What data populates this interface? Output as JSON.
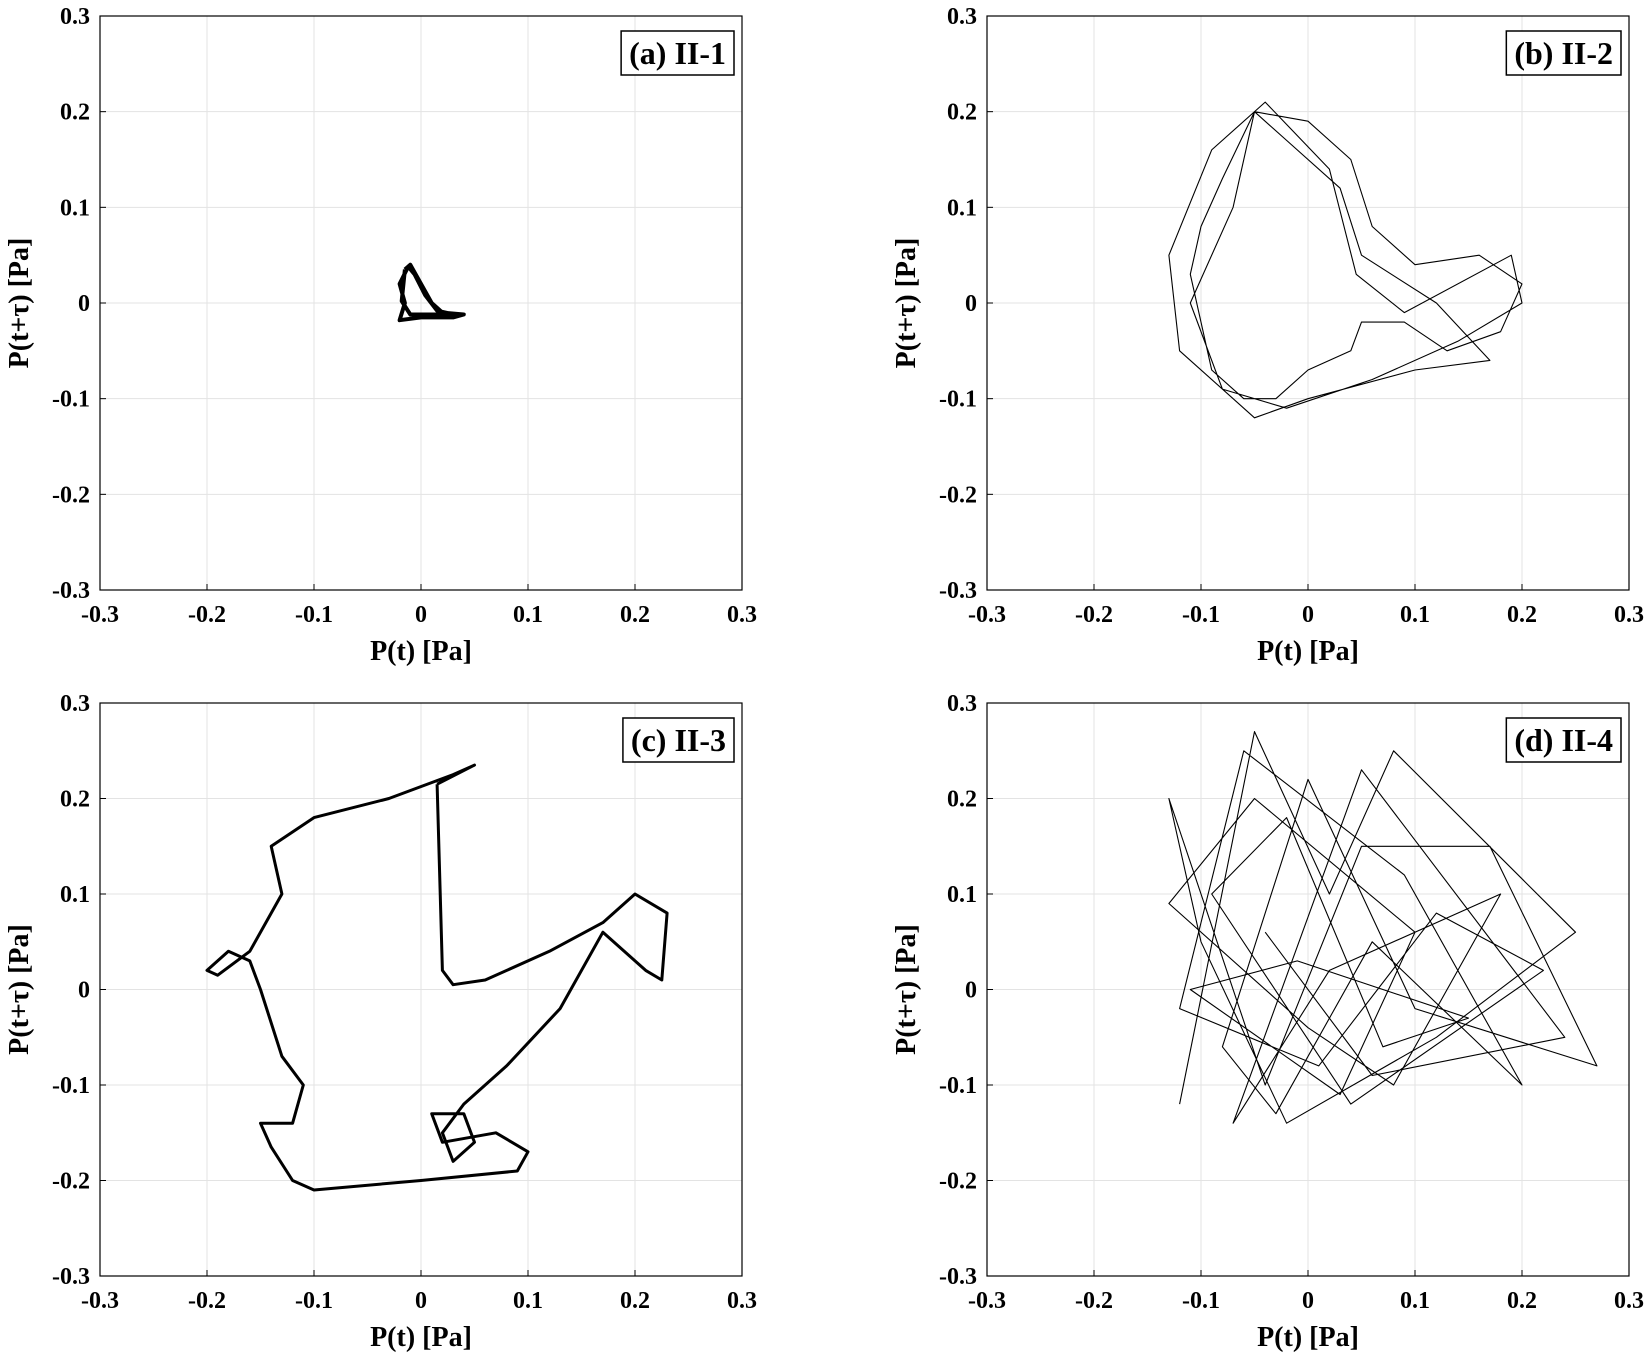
{
  "chart_data": [
    {
      "type": "line",
      "title": "(a) II-1",
      "xlabel": "P(t) [Pa]",
      "ylabel": "P(t+τ) [Pa]",
      "xlim": [
        -0.3,
        0.3
      ],
      "ylim": [
        -0.3,
        0.3
      ],
      "xticks": [
        -0.3,
        -0.2,
        -0.1,
        0,
        0.1,
        0.2,
        0.3
      ],
      "yticks": [
        -0.3,
        -0.2,
        -0.1,
        0,
        0.1,
        0.2,
        0.3
      ],
      "grid": true,
      "color": "#000000",
      "x": [
        -0.015,
        -0.01,
        0.0,
        0.01,
        0.02,
        0.04,
        0.03,
        0.0,
        -0.02,
        -0.015,
        -0.02,
        -0.012,
        -0.006,
        0.004,
        0.015,
        0.035,
        0.02,
        -0.01,
        -0.018,
        -0.015
      ],
      "values": [
        0.035,
        0.04,
        0.02,
        0.0,
        -0.01,
        -0.012,
        -0.015,
        -0.015,
        -0.018,
        0.0,
        0.02,
        0.038,
        0.03,
        0.008,
        -0.008,
        -0.013,
        -0.012,
        -0.012,
        0.002,
        0.035
      ]
    },
    {
      "type": "line",
      "title": "(b) II-2",
      "xlabel": "P(t) [Pa]",
      "ylabel": "P(t+τ) [Pa]",
      "xlim": [
        -0.3,
        0.3
      ],
      "ylim": [
        -0.3,
        0.3
      ],
      "xticks": [
        -0.3,
        -0.2,
        -0.1,
        0,
        0.1,
        0.2,
        0.3
      ],
      "yticks": [
        -0.3,
        -0.2,
        -0.1,
        0,
        0.1,
        0.2,
        0.3
      ],
      "grid": true,
      "color": "#000000",
      "x": [
        -0.05,
        0.0,
        0.04,
        0.06,
        0.1,
        0.16,
        0.2,
        0.18,
        0.13,
        0.09,
        0.05,
        0.04,
        0.0,
        -0.03,
        -0.06,
        -0.09,
        -0.1,
        -0.11,
        -0.1,
        -0.08,
        -0.05,
        -0.02,
        0.03,
        0.05,
        0.12,
        0.17,
        0.1,
        0.0,
        -0.05,
        -0.12,
        -0.13,
        -0.09,
        -0.04,
        0.02,
        0.045,
        0.09,
        0.19,
        0.2,
        0.14,
        0.06,
        -0.02,
        -0.08,
        -0.11,
        -0.07,
        -0.05
      ],
      "values": [
        0.2,
        0.19,
        0.15,
        0.08,
        0.04,
        0.05,
        0.02,
        -0.03,
        -0.05,
        -0.02,
        -0.02,
        -0.05,
        -0.07,
        -0.1,
        -0.1,
        -0.07,
        -0.02,
        0.03,
        0.08,
        0.13,
        0.2,
        0.17,
        0.12,
        0.05,
        0.0,
        -0.06,
        -0.07,
        -0.1,
        -0.12,
        -0.05,
        0.05,
        0.16,
        0.21,
        0.14,
        0.03,
        -0.01,
        0.05,
        0.0,
        -0.04,
        -0.08,
        -0.11,
        -0.09,
        0.0,
        0.1,
        0.2
      ]
    },
    {
      "type": "line",
      "title": "(c) II-3",
      "xlabel": "P(t) [Pa]",
      "ylabel": "P(t+τ) [Pa]",
      "xlim": [
        -0.3,
        0.3
      ],
      "ylim": [
        -0.3,
        0.3
      ],
      "xticks": [
        -0.3,
        -0.2,
        -0.1,
        0,
        0.1,
        0.2,
        0.3
      ],
      "yticks": [
        -0.3,
        -0.2,
        -0.1,
        0,
        0.1,
        0.2,
        0.3
      ],
      "grid": true,
      "color": "#000000",
      "x": [
        0.015,
        0.02,
        0.03,
        0.06,
        0.12,
        0.17,
        0.2,
        0.23,
        0.225,
        0.21,
        0.17,
        0.13,
        0.08,
        0.04,
        0.02,
        0.03,
        0.05,
        0.04,
        0.01,
        0.02,
        0.07,
        0.1,
        0.09,
        0.0,
        -0.1,
        -0.12,
        -0.14,
        -0.15,
        -0.12,
        -0.11,
        -0.13,
        -0.15,
        -0.16,
        -0.18,
        -0.2,
        -0.19,
        -0.16,
        -0.13,
        -0.14,
        -0.1,
        -0.03,
        0.03,
        0.05,
        0.015
      ],
      "values": [
        0.215,
        0.02,
        0.005,
        0.01,
        0.04,
        0.07,
        0.1,
        0.08,
        0.01,
        0.02,
        0.06,
        -0.02,
        -0.08,
        -0.12,
        -0.15,
        -0.18,
        -0.16,
        -0.13,
        -0.13,
        -0.16,
        -0.15,
        -0.17,
        -0.19,
        -0.2,
        -0.21,
        -0.2,
        -0.165,
        -0.14,
        -0.14,
        -0.1,
        -0.07,
        0.0,
        0.03,
        0.04,
        0.02,
        0.015,
        0.04,
        0.1,
        0.15,
        0.18,
        0.2,
        0.225,
        0.235,
        0.215
      ]
    },
    {
      "type": "line",
      "title": "(d) II-4",
      "xlabel": "P(t) [Pa]",
      "ylabel": "P(t+τ) [Pa]",
      "xlim": [
        -0.3,
        0.3
      ],
      "ylim": [
        -0.3,
        0.3
      ],
      "xticks": [
        -0.3,
        -0.2,
        -0.1,
        0,
        0.1,
        0.2,
        0.3
      ],
      "yticks": [
        -0.3,
        -0.2,
        -0.1,
        0,
        0.1,
        0.2,
        0.3
      ],
      "grid": true,
      "color": "#000000",
      "x": [
        -0.12,
        -0.05,
        0.02,
        0.08,
        0.25,
        0.12,
        -0.02,
        -0.1,
        -0.13,
        -0.04,
        0.05,
        0.17,
        0.27,
        0.1,
        0.0,
        -0.08,
        -0.03,
        0.06,
        0.2,
        0.09,
        -0.06,
        -0.12,
        0.01,
        0.12,
        0.22,
        0.04,
        -0.09,
        -0.02,
        0.07,
        0.15,
        -0.01,
        -0.11,
        0.03,
        0.1,
        -0.05,
        -0.13,
        0.0,
        0.08,
        0.18,
        0.02,
        -0.07,
        0.05,
        0.24,
        0.06,
        -0.04
      ],
      "values": [
        -0.12,
        0.27,
        0.1,
        0.25,
        0.06,
        -0.05,
        -0.14,
        0.05,
        0.2,
        -0.1,
        0.15,
        0.15,
        -0.08,
        -0.02,
        0.22,
        -0.06,
        -0.13,
        0.05,
        -0.1,
        0.12,
        0.25,
        -0.02,
        -0.08,
        0.08,
        0.02,
        -0.12,
        0.1,
        0.18,
        -0.06,
        -0.03,
        0.03,
        0.0,
        -0.11,
        0.06,
        0.2,
        0.09,
        -0.04,
        -0.1,
        0.1,
        0.02,
        -0.14,
        0.23,
        -0.05,
        -0.09,
        0.06
      ]
    }
  ]
}
